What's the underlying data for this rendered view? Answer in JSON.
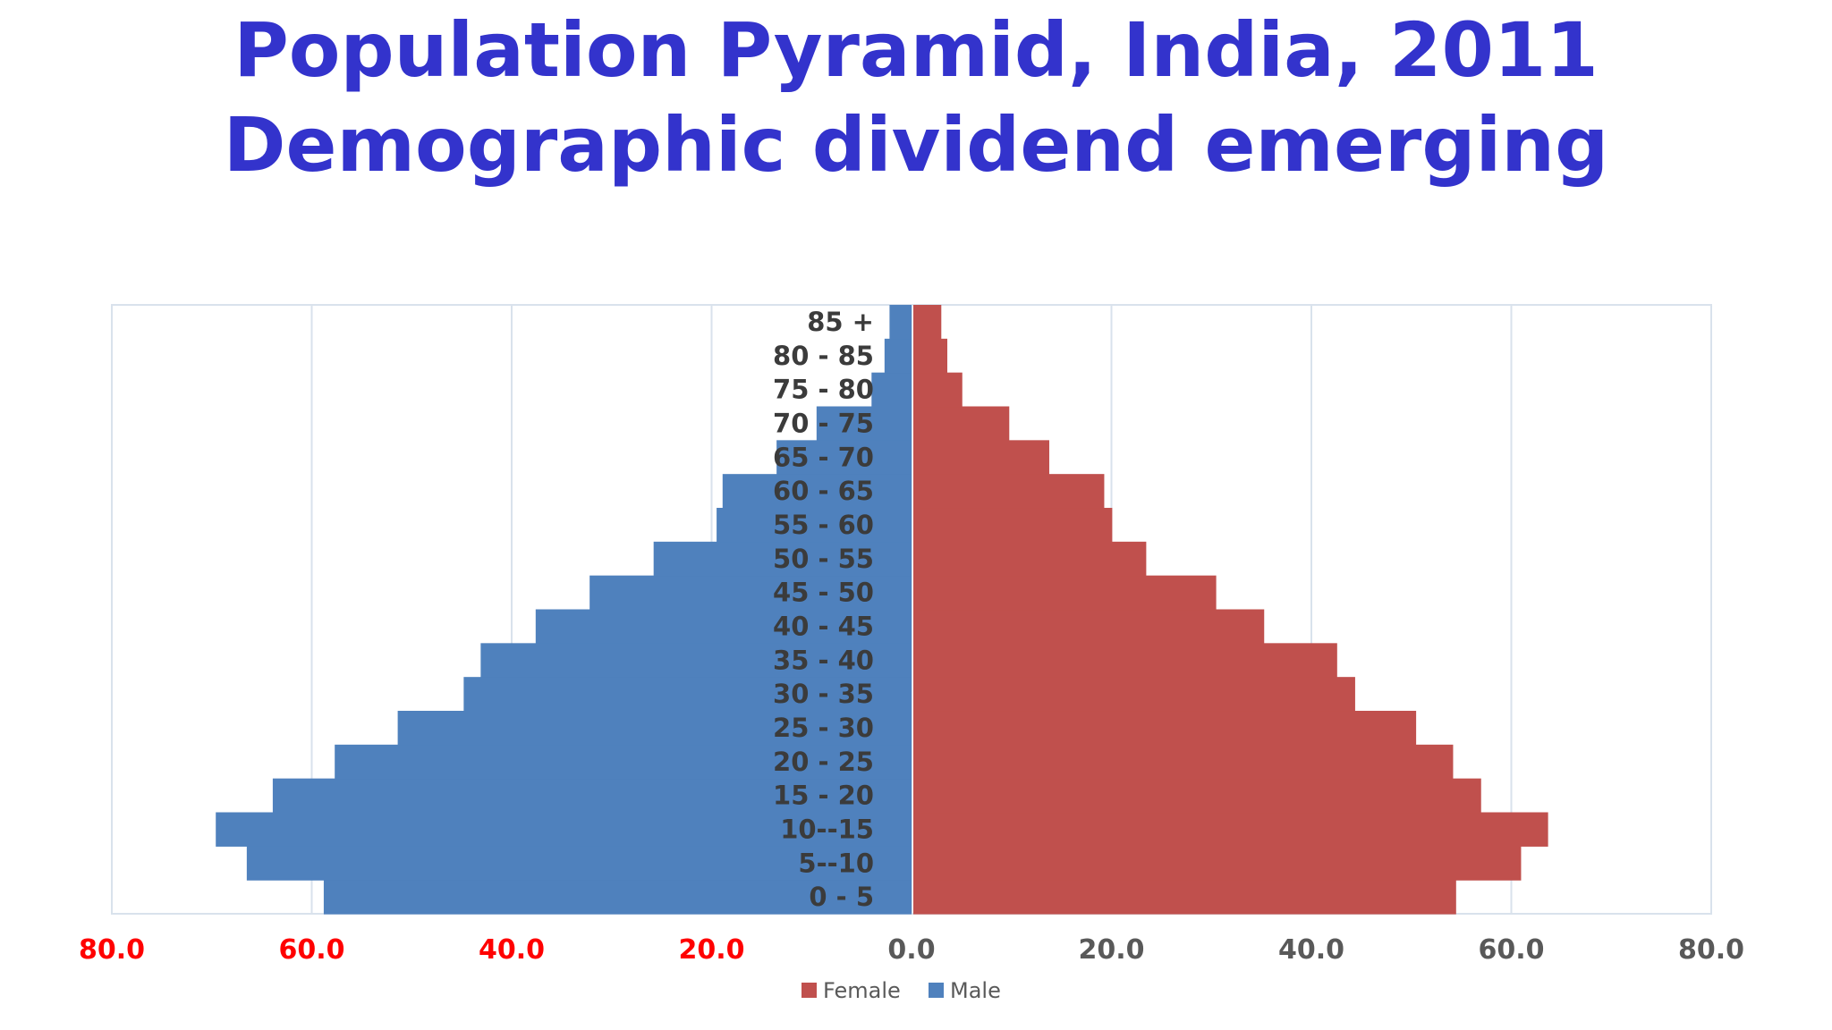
{
  "slide": {
    "title_line1": "Population Pyramid, India, 2011",
    "title_line2": "Demographic dividend emerging"
  },
  "chart_data": {
    "type": "bar",
    "orientation": "horizontal-pyramid",
    "categories": [
      "0 - 5",
      "5--10",
      "10--15",
      "15 - 20",
      "20 - 25",
      "25 - 30",
      "30 - 35",
      "35 - 40",
      "40 - 45",
      "45 - 50",
      "50 - 55",
      "55 - 60",
      "60 - 65",
      "65 - 70",
      "70 - 75",
      "75 - 80",
      "80 - 85",
      "85 +"
    ],
    "series": [
      {
        "name": "Female",
        "color": "#c0504d",
        "side": "right",
        "values": [
          54.3,
          60.8,
          63.5,
          56.8,
          54.0,
          50.3,
          44.2,
          42.4,
          35.1,
          30.3,
          23.3,
          19.9,
          19.1,
          13.6,
          9.6,
          4.9,
          3.4,
          2.8
        ]
      },
      {
        "name": "Male",
        "color": "#4f81bd",
        "side": "left",
        "values": [
          58.8,
          66.5,
          69.6,
          63.9,
          57.7,
          51.4,
          44.8,
          43.1,
          37.6,
          32.2,
          25.8,
          19.5,
          18.9,
          13.5,
          9.5,
          4.0,
          2.7,
          2.2
        ]
      }
    ],
    "xlim": [
      -80,
      80
    ],
    "x_tick_labels": [
      "80.0",
      "60.0",
      "40.0",
      "20.0",
      "0.0",
      "20.0",
      "40.0",
      "60.0",
      "80.0"
    ],
    "x_tick_colors": [
      "#ff0000",
      "#ff0000",
      "#ff0000",
      "#ff0000",
      "#595959",
      "#595959",
      "#595959",
      "#595959",
      "#595959"
    ],
    "grid": true,
    "legend_position": "bottom"
  }
}
